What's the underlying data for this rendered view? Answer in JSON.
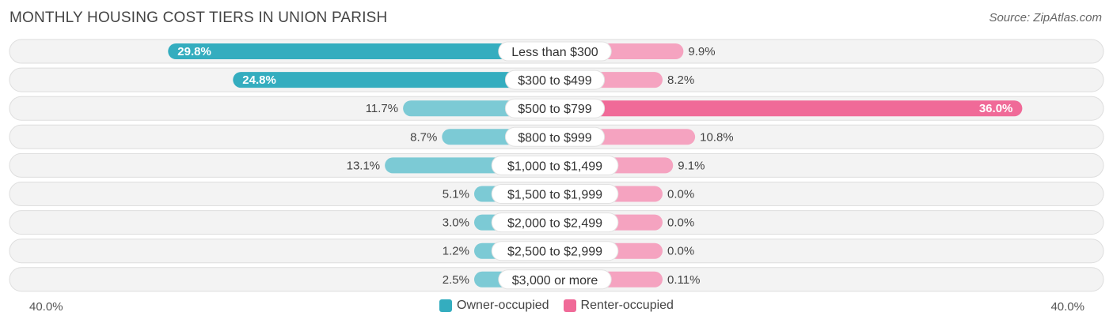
{
  "title": "MONTHLY HOUSING COST TIERS IN UNION PARISH",
  "source": "Source: ZipAtlas.com",
  "chart_data": {
    "type": "bar",
    "orientation": "horizontal-diverging",
    "categories": [
      "Less than $300",
      "$300 to $499",
      "$500 to $799",
      "$800 to $999",
      "$1,000 to $1,499",
      "$1,500 to $1,999",
      "$2,000 to $2,499",
      "$2,500 to $2,999",
      "$3,000 or more"
    ],
    "series": [
      {
        "name": "Owner-occupied",
        "color": "#34adbf",
        "values": [
          29.8,
          24.8,
          11.7,
          8.7,
          13.1,
          5.1,
          3.0,
          1.2,
          2.5
        ],
        "labels": [
          "29.8%",
          "24.8%",
          "11.7%",
          "8.7%",
          "13.1%",
          "5.1%",
          "3.0%",
          "1.2%",
          "2.5%"
        ]
      },
      {
        "name": "Renter-occupied",
        "color": "#f06a98",
        "values": [
          9.9,
          8.2,
          36.0,
          10.8,
          9.1,
          0.0,
          0.0,
          0.0,
          0.11
        ],
        "labels": [
          "9.9%",
          "8.2%",
          "36.0%",
          "10.8%",
          "9.1%",
          "0.0%",
          "0.0%",
          "0.0%",
          "0.11%"
        ]
      }
    ],
    "axis": {
      "min_label": "40.0%",
      "max_label": "40.0%",
      "max": 40.0
    },
    "legend_position": "bottom-center"
  }
}
